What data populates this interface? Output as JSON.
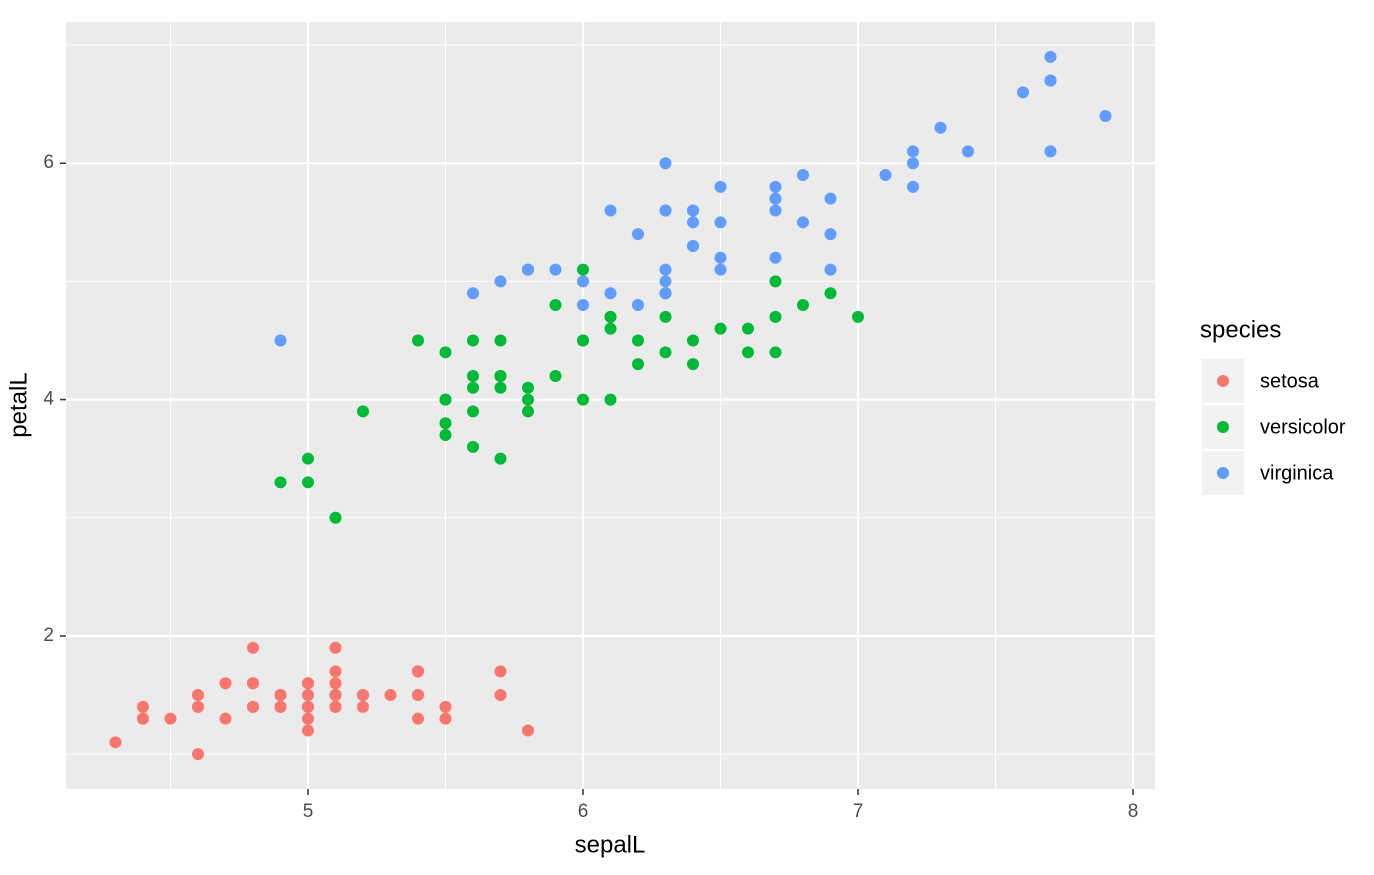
{
  "chart_data": {
    "type": "scatter",
    "xlabel": "sepalL",
    "ylabel": "petalL",
    "xlim": [
      4.12,
      8.08
    ],
    "ylim": [
      0.705,
      7.195
    ],
    "xticks": [
      5,
      6,
      7,
      8
    ],
    "yticks": [
      2,
      4,
      6
    ],
    "xminor": [
      4.5,
      5.5,
      6.5,
      7.5
    ],
    "yminor": [
      1,
      3,
      5,
      7
    ],
    "grid": true,
    "legend": {
      "title": "species",
      "position": "right"
    },
    "series": [
      {
        "name": "setosa",
        "color": "#F8766D",
        "x": [
          5.1,
          4.9,
          4.7,
          4.6,
          5.0,
          5.4,
          4.6,
          5.0,
          4.4,
          4.9,
          5.4,
          4.8,
          4.8,
          4.3,
          5.8,
          5.7,
          5.4,
          5.1,
          5.7,
          5.1,
          5.4,
          5.1,
          4.6,
          5.1,
          4.8,
          5.0,
          5.0,
          5.2,
          5.2,
          4.7,
          4.8,
          5.4,
          5.2,
          5.5,
          4.9,
          5.0,
          5.5,
          4.9,
          4.4,
          5.1,
          5.0,
          4.5,
          4.4,
          5.0,
          5.1,
          4.8,
          5.1,
          4.6,
          5.3,
          5.0
        ],
        "values": [
          1.4,
          1.4,
          1.3,
          1.5,
          1.4,
          1.7,
          1.4,
          1.5,
          1.4,
          1.5,
          1.5,
          1.6,
          1.4,
          1.1,
          1.2,
          1.5,
          1.3,
          1.4,
          1.7,
          1.5,
          1.7,
          1.5,
          1.0,
          1.7,
          1.9,
          1.6,
          1.6,
          1.5,
          1.4,
          1.6,
          1.6,
          1.5,
          1.5,
          1.4,
          1.5,
          1.2,
          1.3,
          1.4,
          1.3,
          1.5,
          1.3,
          1.3,
          1.3,
          1.6,
          1.9,
          1.4,
          1.6,
          1.4,
          1.5,
          1.4
        ]
      },
      {
        "name": "versicolor",
        "color": "#00BA38",
        "x": [
          7.0,
          6.4,
          6.9,
          5.5,
          6.5,
          5.7,
          6.3,
          4.9,
          6.6,
          5.2,
          5.0,
          5.9,
          6.0,
          6.1,
          5.6,
          6.7,
          5.6,
          5.8,
          6.2,
          5.6,
          5.9,
          6.1,
          6.3,
          6.1,
          6.4,
          6.6,
          6.8,
          6.7,
          6.0,
          5.7,
          5.5,
          5.5,
          5.8,
          6.0,
          5.4,
          6.0,
          6.7,
          6.3,
          5.6,
          5.5,
          5.5,
          6.1,
          5.8,
          5.0,
          5.6,
          5.7,
          5.7,
          6.2,
          5.1,
          5.7
        ],
        "values": [
          4.7,
          4.5,
          4.9,
          4.0,
          4.6,
          4.5,
          4.7,
          3.3,
          4.6,
          3.9,
          3.5,
          4.2,
          4.0,
          4.7,
          3.6,
          4.4,
          4.5,
          4.1,
          4.5,
          3.9,
          4.8,
          4.0,
          4.9,
          4.7,
          4.3,
          4.4,
          4.8,
          5.0,
          4.5,
          3.5,
          3.8,
          3.7,
          3.9,
          5.1,
          4.5,
          4.5,
          4.7,
          4.4,
          4.1,
          4.0,
          4.4,
          4.6,
          4.0,
          3.3,
          4.2,
          4.2,
          4.2,
          4.3,
          3.0,
          4.1
        ]
      },
      {
        "name": "virginica",
        "color": "#619CFF",
        "x": [
          6.3,
          5.8,
          7.1,
          6.3,
          6.5,
          7.6,
          4.9,
          7.3,
          6.7,
          7.2,
          6.5,
          6.4,
          6.8,
          5.7,
          5.8,
          6.4,
          6.5,
          7.7,
          7.7,
          6.0,
          6.9,
          5.6,
          7.7,
          6.3,
          6.7,
          7.2,
          6.2,
          6.1,
          6.4,
          7.2,
          7.4,
          7.9,
          6.4,
          6.3,
          6.1,
          7.7,
          6.3,
          6.4,
          6.0,
          6.9,
          6.7,
          6.9,
          5.8,
          6.8,
          6.7,
          6.7,
          6.3,
          6.5,
          6.2,
          5.9
        ],
        "values": [
          6.0,
          5.1,
          5.9,
          5.6,
          5.8,
          6.6,
          4.5,
          6.3,
          5.8,
          6.1,
          5.1,
          5.3,
          5.5,
          5.0,
          5.1,
          5.3,
          5.5,
          6.7,
          6.9,
          5.0,
          5.7,
          4.9,
          6.7,
          4.9,
          5.7,
          6.0,
          4.8,
          4.9,
          5.6,
          5.8,
          6.1,
          6.4,
          5.6,
          5.1,
          5.6,
          6.1,
          5.6,
          5.5,
          4.8,
          5.4,
          5.6,
          5.1,
          5.1,
          5.9,
          5.7,
          5.2,
          5.0,
          5.2,
          5.4,
          5.1
        ]
      }
    ]
  }
}
